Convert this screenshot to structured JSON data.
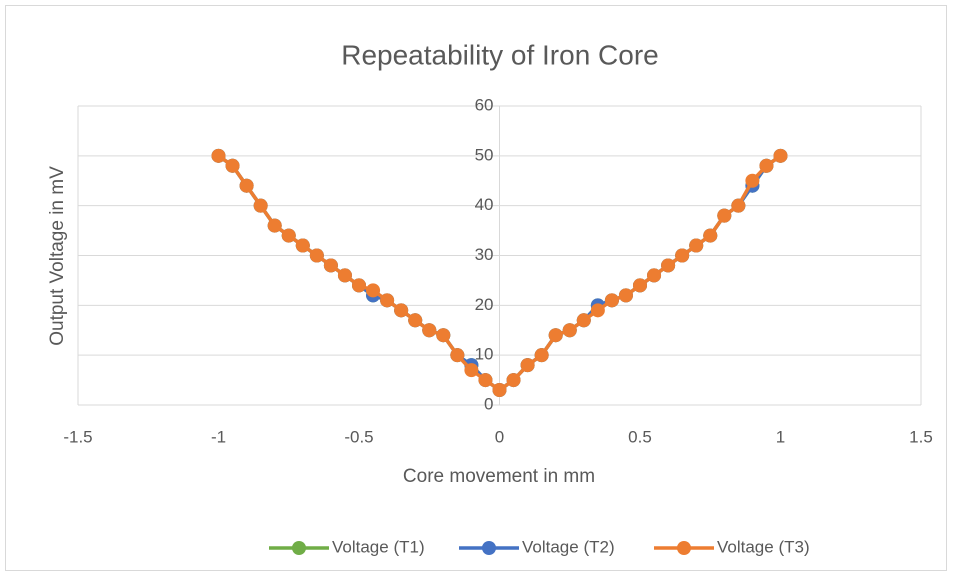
{
  "chart_data": {
    "type": "scatter-line",
    "title": "Repeatability of Iron Core",
    "x_label": "Core movement in mm",
    "y_label": "Output Voltage in mV",
    "x": [
      -1,
      -0.95,
      -0.9,
      -0.85,
      -0.8,
      -0.75,
      -0.7,
      -0.65,
      -0.6,
      -0.55,
      -0.5,
      -0.45,
      -0.4,
      -0.35,
      -0.3,
      -0.25,
      -0.2,
      -0.15,
      -0.1,
      -0.05,
      0,
      0.05,
      0.1,
      0.15,
      0.2,
      0.25,
      0.3,
      0.35,
      0.4,
      0.45,
      0.5,
      0.55,
      0.6,
      0.65,
      0.7,
      0.75,
      0.8,
      0.85,
      0.9,
      0.95,
      1
    ],
    "series": [
      {
        "name": "Voltage (T1)",
        "color": "#70ad47",
        "values": [
          50,
          48,
          44,
          40,
          36,
          34,
          32,
          30,
          28,
          26,
          24,
          22,
          21,
          19,
          17,
          15,
          14,
          10,
          8,
          5,
          3,
          5,
          8,
          10,
          14,
          15,
          17,
          20,
          21,
          22,
          24,
          26,
          28,
          30,
          32,
          34,
          38,
          40,
          44,
          48,
          50
        ]
      },
      {
        "name": "Voltage (T2)",
        "color": "#4472c4",
        "values": [
          50,
          48,
          44,
          40,
          36,
          34,
          32,
          30,
          28,
          26,
          24,
          22,
          21,
          19,
          17,
          15,
          14,
          10,
          8,
          5,
          3,
          5,
          8,
          10,
          14,
          15,
          17,
          20,
          21,
          22,
          24,
          26,
          28,
          30,
          32,
          34,
          38,
          40,
          44,
          48,
          50
        ]
      },
      {
        "name": "Voltage (T3)",
        "color": "#ed7d31",
        "values": [
          50,
          48,
          44,
          40,
          36,
          34,
          32,
          30,
          28,
          26,
          24,
          23,
          21,
          19,
          17,
          15,
          14,
          10,
          7,
          5,
          3,
          5,
          8,
          10,
          14,
          15,
          17,
          19,
          21,
          22,
          24,
          26,
          28,
          30,
          32,
          34,
          38,
          40,
          45,
          48,
          50
        ]
      }
    ],
    "xlim": [
      -1.5,
      1.5
    ],
    "xticks": [
      -1.5,
      -1,
      -0.5,
      0,
      0.5,
      1,
      1.5
    ],
    "ylim": [
      0,
      60
    ],
    "yticks": [
      0,
      10,
      20,
      30,
      40,
      50,
      60
    ],
    "grid": true,
    "legend": "bottom"
  }
}
